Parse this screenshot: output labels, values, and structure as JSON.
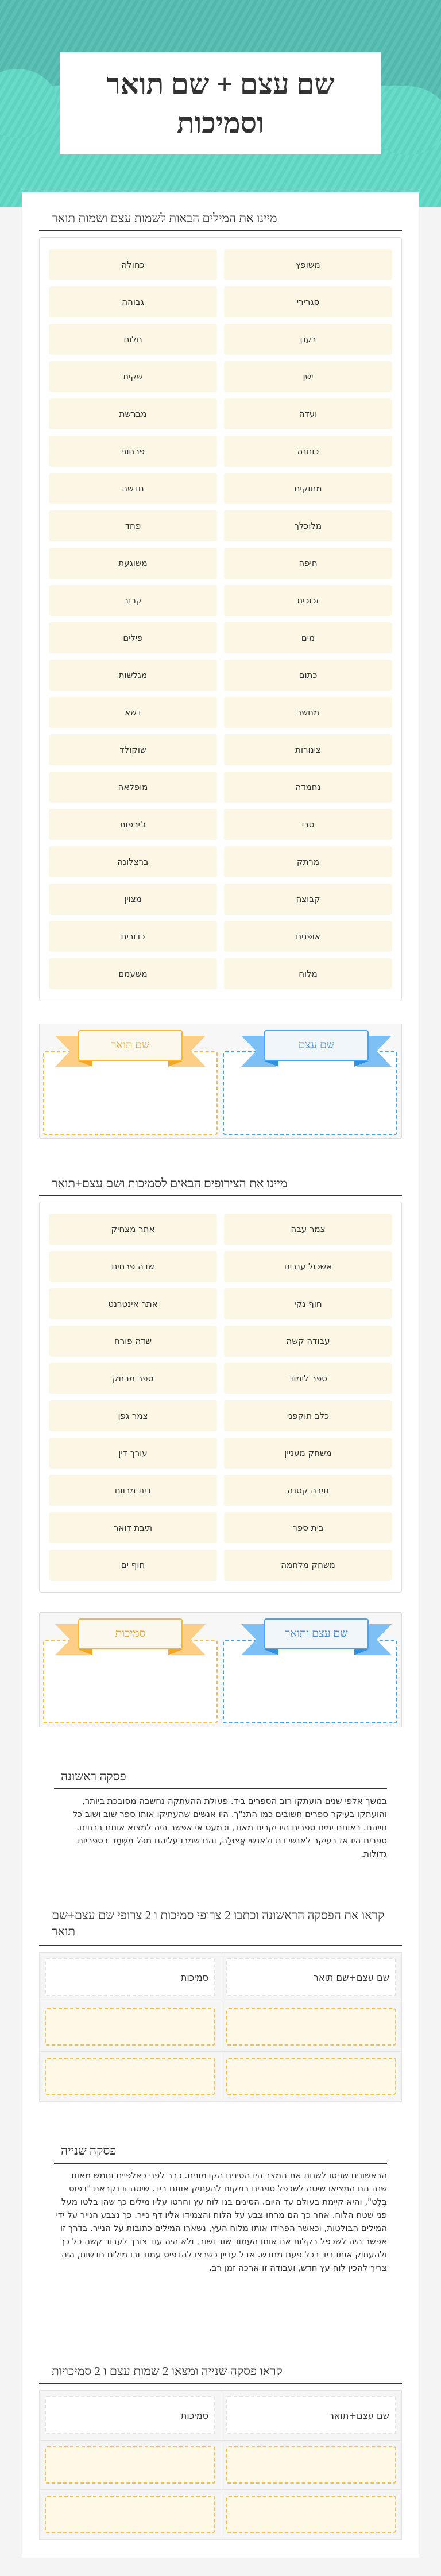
{
  "title": "שם עצם + שם תואר וסמיכות",
  "colors": {
    "header_teal": "#5cc0b6",
    "card_cream": "#fcf6e5",
    "bin_blue": "#4a9fe0",
    "bin_orange": "#f3bd4d"
  },
  "section1": {
    "heading": "מיינו את המילים הבאות לשמות עצם ושמות תואר",
    "items": [
      "משופץ",
      "כחולה",
      "סגרירי",
      "גבוהה",
      "רענן",
      "חלום",
      "ישן",
      "שקית",
      "ועדה",
      "מברשת",
      "כותנה",
      "פרחוני",
      "מתוקים",
      "חדשה",
      "מלוכלך",
      "פחד",
      "חיפה",
      "משוגעת",
      "זכוכית",
      "קרוב",
      "מים",
      "פילים",
      "כתום",
      "מגלשות",
      "מחשב",
      "דשא",
      "צינורות",
      "שוקולד",
      "נחמדה",
      "מופלאה",
      "טרי",
      "ג'ירפות",
      "מרתק",
      "ברצלונה",
      "קבוצה",
      "מצוין",
      "אופנים",
      "כדורים",
      "מלוח",
      "משעמם"
    ],
    "bins": [
      "שם עצם",
      "שם תואר"
    ]
  },
  "section2": {
    "heading": "מיינו את הצירופים הבאים לסמיכות ושם עצם+תואר",
    "items": [
      "צמר עבה",
      "אתר מצחיק",
      "אשכול ענבים",
      "שדה פרחים",
      "חוף נקי",
      "אתר אינטרנט",
      "עבודה קשה",
      "שדה פורח",
      "ספר לימוד",
      "ספר מרתק",
      "כלב תוקפני",
      "צמר גפן",
      "משחק מעניין",
      "עורך דין",
      "תיבה קטנה",
      "בית מרווח",
      "בית ספר",
      "תיבת דואר",
      "משחק מלחמה",
      "חוף ים"
    ],
    "bins": [
      "שם עצם ותואר",
      "סמיכות"
    ]
  },
  "paragraph1": {
    "heading": "פסקה ראשונה",
    "text": "במשך אלפי שנים הועתקו רוב הספרים ביד. פעולת ההעתקה נחשבה מסובכת ביותר, והועתקו בעיקר ספרים חשובים כמו התנ\"ך. היו אנשים שהעתיקו אותו ספר שוב ושוב כל חייהם. באותם ימים ספרים היו יקרים מאוד, וכמעט אי אפשר היה למצוא אותם בבתים. ספרים היו אז בעיקר לאנשי דת ולאנשי אֲצוּלָה, והם שמרו עליהם מִכֹּל מִשְׁמָר בספריות גדולות."
  },
  "question1": {
    "heading": "קראו את הפסקה הראשונה וכתבו 2 צרופי סמיכות ו 2 צרופי שם עצם+שם תואר",
    "columns": [
      "שם עצם+שם תואר",
      "סמיכות"
    ]
  },
  "paragraph2": {
    "heading": "פסקה שנייה",
    "text": "הראשונים שניסו לשנות את המצב היו הסינים הקדמונים. כבר לפני כאלפיים וחמש מאות שנה הם המציאו שיטה לשכפל ספרים במקום להעתיק אותם  ביד. שיטה זו נקראת \"דפוס בֶּלֶט\", והיא קיימת בעולם עד היום. הסינים בנו לוח עץ וחרטו עליו מילים כך שהן בלטו מעל פני שטח הלוח. אחר כך הם  מרחו צבע על הלוח והצמידו אליו דף נייר. כך נצבע הנייר על ידי המילים הבולטות, וכאשר הפרידו אותו מלוח העץ, נשארו המילים כתובות על הנייר. בדרך זו אפשר היה לשכפל בקלות את אותו העמוד שוב ושוב, ולא היה עוד צורך לעבוד קשה כל כך ולהעתיק אותו ביד בכל פעם מחדש. אבל עדיין  כשרצו להדפיס עמוד ובו מילים חדשות, היה צריך להכין לוח עץ חדש, ועבודה זו ארכה זמן רב."
  },
  "question2": {
    "heading": "קראו פסקה שנייה ומצאו 2 שמות עצם ו 2 סמיכויות",
    "columns": [
      "שם עצם+תואר",
      "סמיכות"
    ]
  }
}
